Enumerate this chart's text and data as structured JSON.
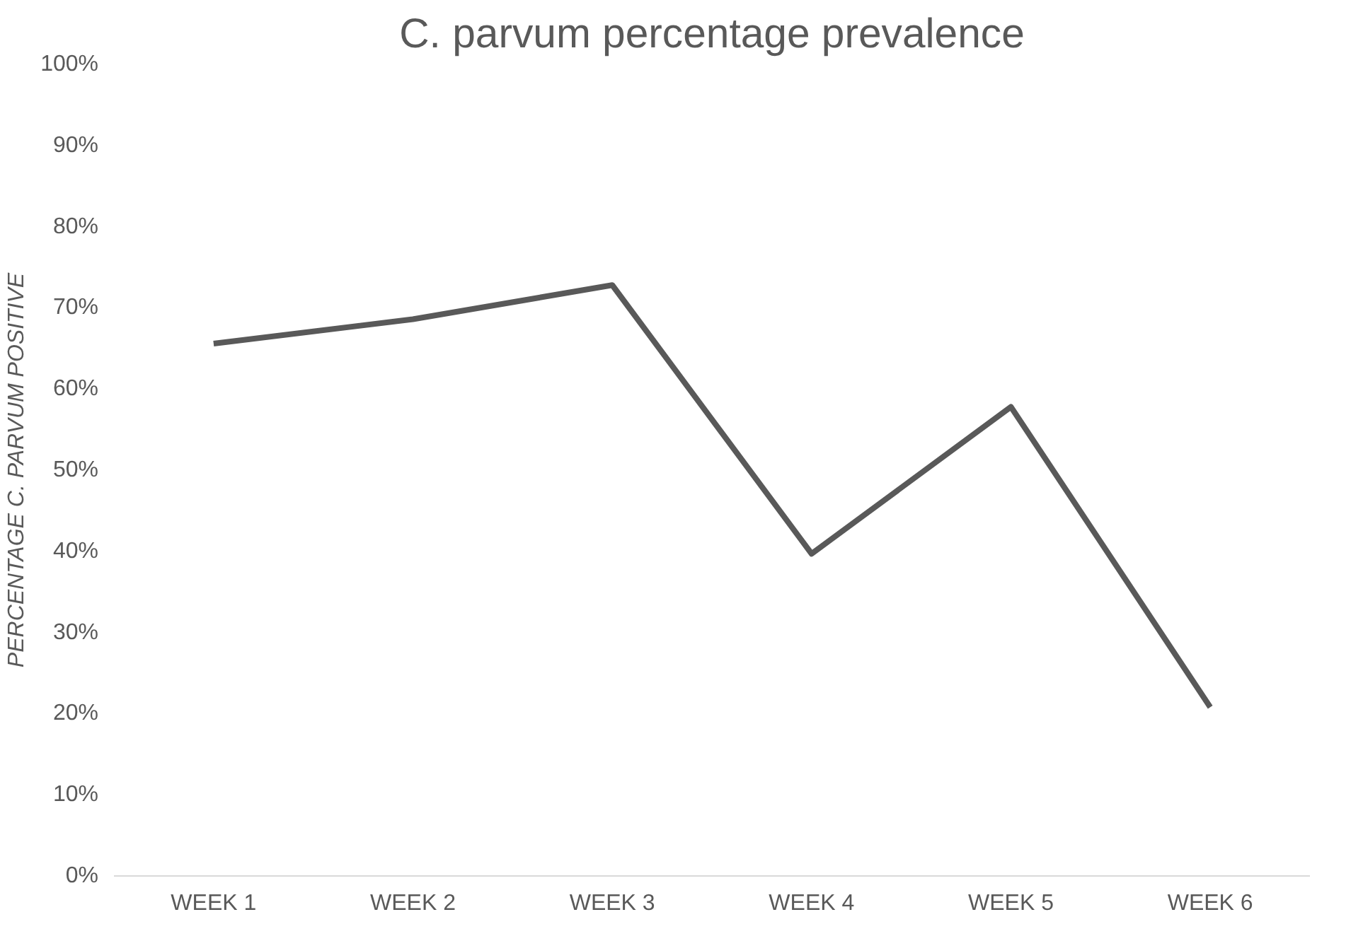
{
  "chart_data": {
    "type": "line",
    "title": "C. parvum percentage prevalence",
    "ylabel": "PERCENTAGE C. PARVUM POSITIVE",
    "categories": [
      "WEEK 1",
      "WEEK 2",
      "WEEK 3",
      "WEEK 4",
      "WEEK 5",
      "WEEK 6"
    ],
    "series": [
      {
        "color": "#595959",
        "values": [
          65.6,
          68.6,
          72.8,
          39.7,
          57.8,
          20.8
        ]
      }
    ],
    "ylim": [
      0,
      100
    ],
    "yticks": [
      {
        "value": 0,
        "label": "0%"
      },
      {
        "value": 10,
        "label": "10%"
      },
      {
        "value": 20,
        "label": "20%"
      },
      {
        "value": 30,
        "label": "30%"
      },
      {
        "value": 40,
        "label": "40%"
      },
      {
        "value": 50,
        "label": "50%"
      },
      {
        "value": 60,
        "label": "60%"
      },
      {
        "value": 70,
        "label": "70%"
      },
      {
        "value": 80,
        "label": "80%"
      },
      {
        "value": 90,
        "label": "90%"
      },
      {
        "value": 100,
        "label": "100%"
      }
    ],
    "grid": false,
    "marker": "none",
    "line_style": "solid"
  }
}
